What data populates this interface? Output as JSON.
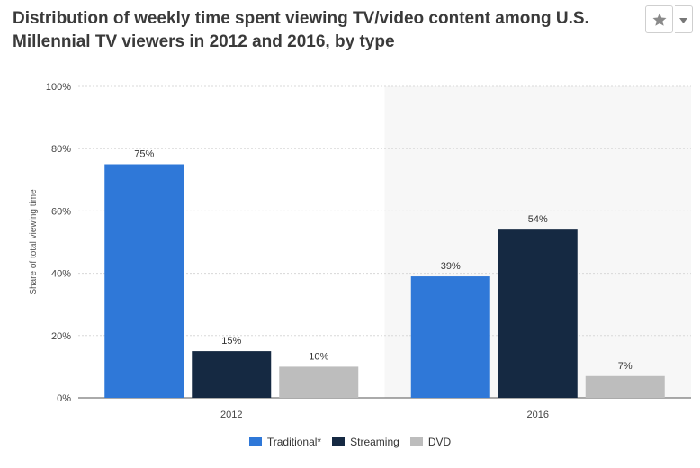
{
  "header": {
    "title": "Distribution of weekly time spent viewing TV/video content among U.S. Millennial TV viewers in 2012 and 2016, by type",
    "star_icon": "star-icon",
    "menu_icon": "chevron-down-icon"
  },
  "chart_data": {
    "type": "bar",
    "categories": [
      "2012",
      "2016"
    ],
    "series": [
      {
        "name": "Traditional*",
        "values": [
          75,
          39
        ],
        "labels": [
          "75%",
          "39%"
        ],
        "color": "#2f78d8"
      },
      {
        "name": "Streaming",
        "values": [
          15,
          54
        ],
        "labels": [
          "15%",
          "54%"
        ],
        "color": "#152942"
      },
      {
        "name": "DVD",
        "values": [
          10,
          7
        ],
        "labels": [
          "10%",
          "7%"
        ],
        "color": "#bdbdbd"
      }
    ],
    "ylabel": "Share of total viewing time",
    "xlabel": "",
    "ylim": [
      0,
      100
    ],
    "yticks": [
      0,
      20,
      40,
      60,
      80,
      100
    ],
    "ytick_labels": [
      "0%",
      "20%",
      "40%",
      "60%",
      "80%",
      "100%"
    ],
    "grid": true,
    "legend": "bottom"
  }
}
